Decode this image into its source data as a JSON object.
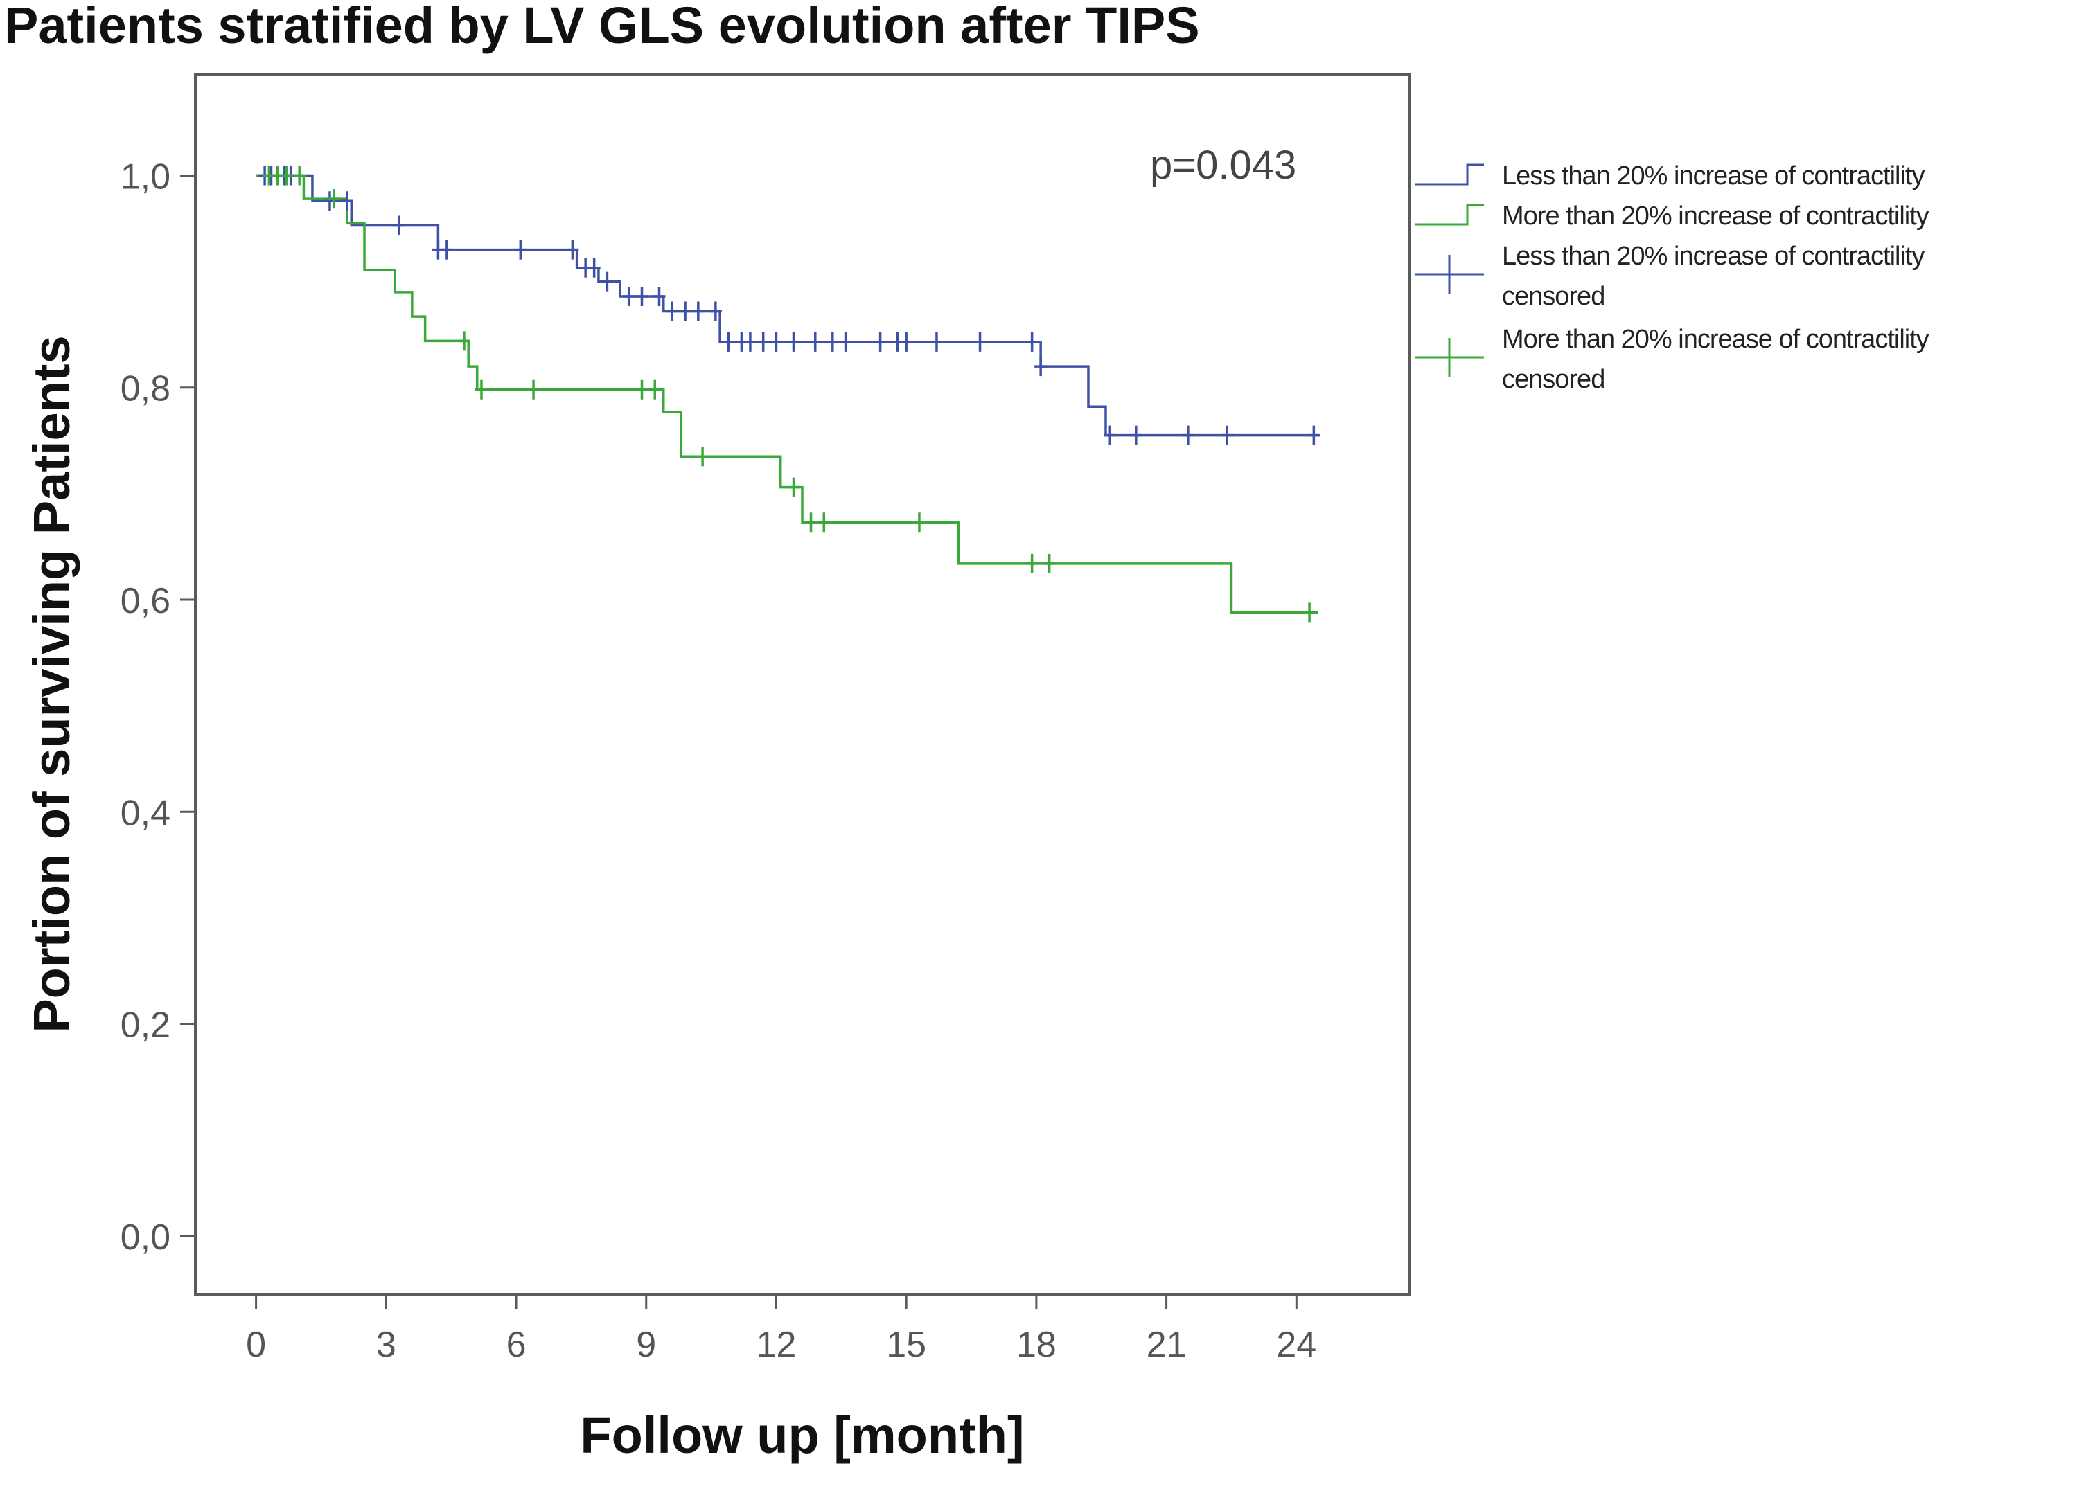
{
  "chart_data": {
    "type": "line",
    "subtype": "kaplan-meier",
    "title": "Patients stratified by LV GLS evolution after TIPS",
    "xlabel": "Follow up [month]",
    "ylabel": "Portion of surviving Patients",
    "xlim": [
      -1.4,
      26.6
    ],
    "ylim": [
      -0.055,
      1.095
    ],
    "xticks": [
      0,
      3,
      6,
      9,
      12,
      15,
      18,
      21,
      24
    ],
    "xtick_labels": [
      "0",
      "3",
      "6",
      "9",
      "12",
      "15",
      "18",
      "21",
      "24"
    ],
    "yticks": [
      0.0,
      0.2,
      0.4,
      0.6,
      0.8,
      1.0
    ],
    "ytick_labels": [
      "0,0",
      "0,2",
      "0,4",
      "0,6",
      "0,8",
      "1,0"
    ],
    "grid": false,
    "legend_position": "right",
    "annotation": "p=0.043",
    "series": [
      {
        "name": "Less than 20% increase of contractility",
        "censored_label": "Less than 20% increase of contractility censored",
        "color": "#3f51a5",
        "steps": [
          [
            0.0,
            1.0
          ],
          [
            1.3,
            0.976
          ],
          [
            2.2,
            0.953
          ],
          [
            4.2,
            0.93
          ],
          [
            7.4,
            0.913
          ],
          [
            7.9,
            0.9
          ],
          [
            8.4,
            0.886
          ],
          [
            9.4,
            0.872
          ],
          [
            10.7,
            0.843
          ],
          [
            18.1,
            0.82
          ],
          [
            19.2,
            0.782
          ],
          [
            19.6,
            0.755
          ],
          [
            24.5,
            0.755
          ]
        ],
        "censored": [
          0.2,
          0.35,
          0.5,
          0.65,
          0.8,
          1.7,
          2.1,
          3.3,
          4.2,
          4.4,
          6.1,
          7.3,
          7.6,
          7.8,
          8.1,
          8.6,
          8.9,
          9.3,
          9.6,
          9.9,
          10.2,
          10.6,
          10.9,
          11.2,
          11.4,
          11.7,
          12.0,
          12.4,
          12.9,
          13.3,
          13.6,
          14.4,
          14.8,
          15.0,
          15.7,
          16.7,
          17.9,
          18.1,
          19.7,
          20.3,
          21.5,
          22.4,
          24.4
        ]
      },
      {
        "name": "More than 20% increase of contractility",
        "censored_label": "More than 20% increase of contractility censored",
        "color": "#3aa83a",
        "steps": [
          [
            0.0,
            1.0
          ],
          [
            1.1,
            0.978
          ],
          [
            2.1,
            0.955
          ],
          [
            2.5,
            0.911
          ],
          [
            3.2,
            0.89
          ],
          [
            3.6,
            0.867
          ],
          [
            3.9,
            0.844
          ],
          [
            4.9,
            0.82
          ],
          [
            5.1,
            0.798
          ],
          [
            9.4,
            0.777
          ],
          [
            9.8,
            0.735
          ],
          [
            12.1,
            0.706
          ],
          [
            12.6,
            0.673
          ],
          [
            16.2,
            0.634
          ],
          [
            22.5,
            0.588
          ],
          [
            24.5,
            0.588
          ]
        ],
        "censored": [
          0.3,
          0.5,
          0.7,
          1.0,
          1.8,
          4.8,
          5.2,
          6.4,
          8.9,
          9.2,
          10.3,
          12.4,
          12.8,
          13.1,
          15.3,
          17.9,
          18.3,
          24.3
        ]
      }
    ]
  }
}
